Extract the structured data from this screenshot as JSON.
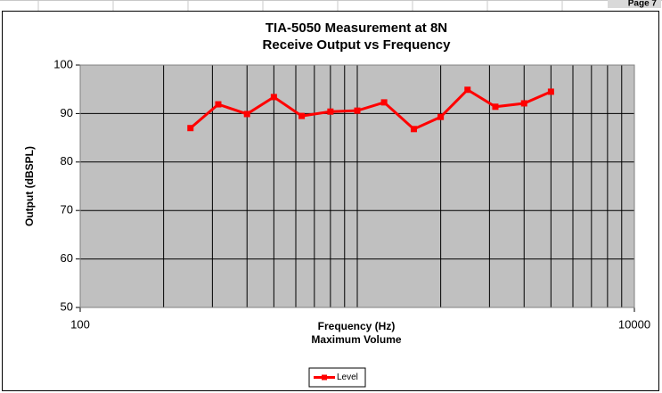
{
  "page": {
    "label": "Page 7"
  },
  "chart_data": {
    "type": "line",
    "title": [
      "TIA-5050 Measurement at 8N",
      "Receive Output vs Frequency"
    ],
    "xlabel": [
      "Frequency (Hz)",
      "Maximum Volume"
    ],
    "ylabel": "Output (dBSPL)",
    "x": [
      250,
      315,
      400,
      500,
      630,
      800,
      1000,
      1250,
      1600,
      2000,
      2500,
      3150,
      4000,
      5000
    ],
    "series": [
      {
        "name": "Level",
        "color": "#ff0000",
        "values": [
          87,
          91.9,
          89.9,
          93.4,
          89.5,
          90.4,
          90.6,
          92.3,
          86.8,
          89.3,
          94.9,
          91.4,
          92.1,
          94.5
        ]
      }
    ],
    "xlim": [
      100,
      10000
    ],
    "xticks": [
      100,
      10000
    ],
    "xlog": true,
    "xgrid_minor": [
      200,
      300,
      400,
      500,
      600,
      700,
      800,
      900,
      1000,
      2000,
      3000,
      4000,
      5000,
      6000,
      7000,
      8000,
      9000
    ],
    "ylim": [
      50,
      100
    ],
    "yticks": [
      50,
      60,
      70,
      80,
      90,
      100
    ],
    "grid": true,
    "legend": "bottom"
  }
}
